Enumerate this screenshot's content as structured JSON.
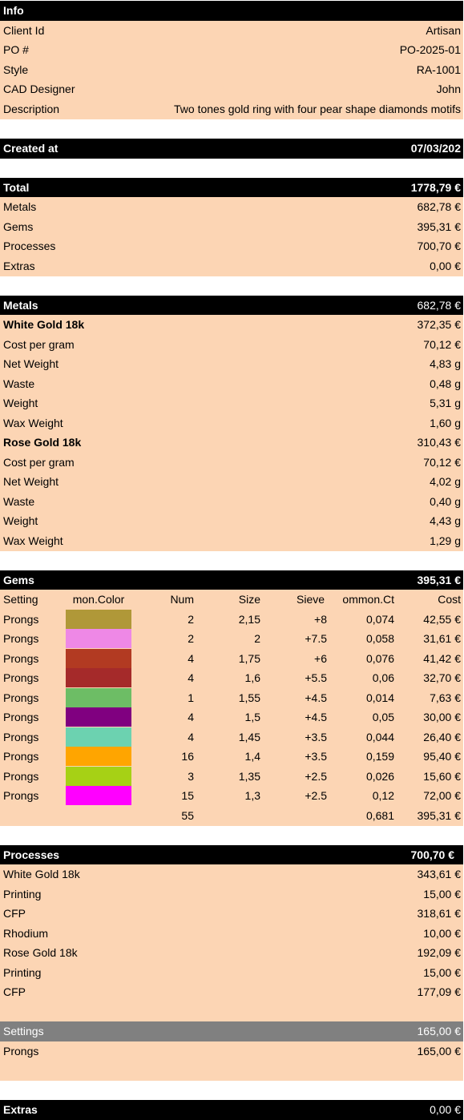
{
  "info": {
    "title": "Info",
    "rows": [
      [
        "Client Id",
        "Artisan"
      ],
      [
        "PO #",
        "PO-2025-01"
      ],
      [
        "Style",
        "RA-1001"
      ],
      [
        "CAD Designer",
        "John"
      ],
      [
        "Description",
        "Two tones gold ring with four pear shape diamonds motifs"
      ]
    ]
  },
  "created_at": {
    "label": "Created at",
    "value": "07/03/202"
  },
  "total": {
    "label": "Total",
    "value": "1778,79 €",
    "rows": [
      [
        "Metals",
        "682,78 €"
      ],
      [
        "Gems",
        "395,31 €"
      ],
      [
        "Processes",
        "700,70 €"
      ],
      [
        "Extras",
        "0,00 €"
      ]
    ]
  },
  "metals": {
    "label": "Metals",
    "value": "682,78 €",
    "materials": [
      {
        "name": "White Gold 18k",
        "value": "372,35 €",
        "rows": [
          [
            "Cost per gram",
            "70,12 €"
          ],
          [
            "Net Weight",
            "4,83 g"
          ],
          [
            "Waste",
            "0,48 g"
          ],
          [
            "Weight",
            "5,31 g"
          ],
          [
            "Wax Weight",
            "1,60 g"
          ]
        ]
      },
      {
        "name": "Rose Gold 18k",
        "value": "310,43 €",
        "rows": [
          [
            "Cost per gram",
            "70,12 €"
          ],
          [
            "Net Weight",
            "4,02 g"
          ],
          [
            "Waste",
            "0,40 g"
          ],
          [
            "Weight",
            "4,43 g"
          ],
          [
            "Wax Weight",
            "1,29 g"
          ]
        ]
      }
    ]
  },
  "gems": {
    "label": "Gems",
    "value": "395,31 €",
    "columns": [
      "Setting",
      "mon.Color",
      "Num",
      "Size",
      "Sieve",
      "ommon.Ct",
      "Cost"
    ],
    "rows": [
      {
        "setting": "Prongs",
        "color": "#b09838",
        "num": "2",
        "size": "2,15",
        "sieve": "+8",
        "ct": "0,074",
        "cost": "42,55 €"
      },
      {
        "setting": "Prongs",
        "color": "#ee88e6",
        "num": "2",
        "size": "2",
        "sieve": "+7.5",
        "ct": "0,058",
        "cost": "31,61 €"
      },
      {
        "setting": "Prongs",
        "color": "#b23a22",
        "num": "4",
        "size": "1,75",
        "sieve": "+6",
        "ct": "0,076",
        "cost": "41,42 €"
      },
      {
        "setting": "Prongs",
        "color": "#a52a2a",
        "num": "4",
        "size": "1,6",
        "sieve": "+5.5",
        "ct": "0,06",
        "cost": "32,70 €"
      },
      {
        "setting": "Prongs",
        "color": "#6dbd65",
        "num": "1",
        "size": "1,55",
        "sieve": "+4.5",
        "ct": "0,014",
        "cost": "7,63 €"
      },
      {
        "setting": "Prongs",
        "color": "#800080",
        "num": "4",
        "size": "1,5",
        "sieve": "+4.5",
        "ct": "0,05",
        "cost": "30,00 €"
      },
      {
        "setting": "Prongs",
        "color": "#6cd2b0",
        "num": "4",
        "size": "1,45",
        "sieve": "+3.5",
        "ct": "0,044",
        "cost": "26,40 €"
      },
      {
        "setting": "Prongs",
        "color": "#ffa500",
        "num": "16",
        "size": "1,4",
        "sieve": "+3.5",
        "ct": "0,159",
        "cost": "95,40 €"
      },
      {
        "setting": "Prongs",
        "color": "#a6d115",
        "num": "3",
        "size": "1,35",
        "sieve": "+2.5",
        "ct": "0,026",
        "cost": "15,60 €"
      },
      {
        "setting": "Prongs",
        "color": "#ff00ff",
        "num": "15",
        "size": "1,3",
        "sieve": "+2.5",
        "ct": "0,12",
        "cost": "72,00 €"
      }
    ],
    "totals": {
      "num": "55",
      "ct": "0,681",
      "cost": "395,31 €"
    }
  },
  "processes": {
    "label": "Processes",
    "value": "700,70 €",
    "materials": [
      {
        "name": "White Gold 18k",
        "value": "343,61 €",
        "rows": [
          [
            "Printing",
            "15,00 €"
          ],
          [
            "CFP",
            "318,61 €"
          ],
          [
            "Rhodium",
            "10,00 €"
          ]
        ]
      },
      {
        "name": "Rose Gold 18k",
        "value": "192,09 €",
        "rows": [
          [
            "Printing",
            "15,00 €"
          ],
          [
            "CFP",
            "177,09 €"
          ]
        ]
      }
    ]
  },
  "settings": {
    "label": "Settings",
    "value": "165,00 €",
    "rows": [
      [
        "Prongs",
        "165,00 €"
      ]
    ]
  },
  "extras": {
    "label": "Extras",
    "value": "0,00 €"
  }
}
